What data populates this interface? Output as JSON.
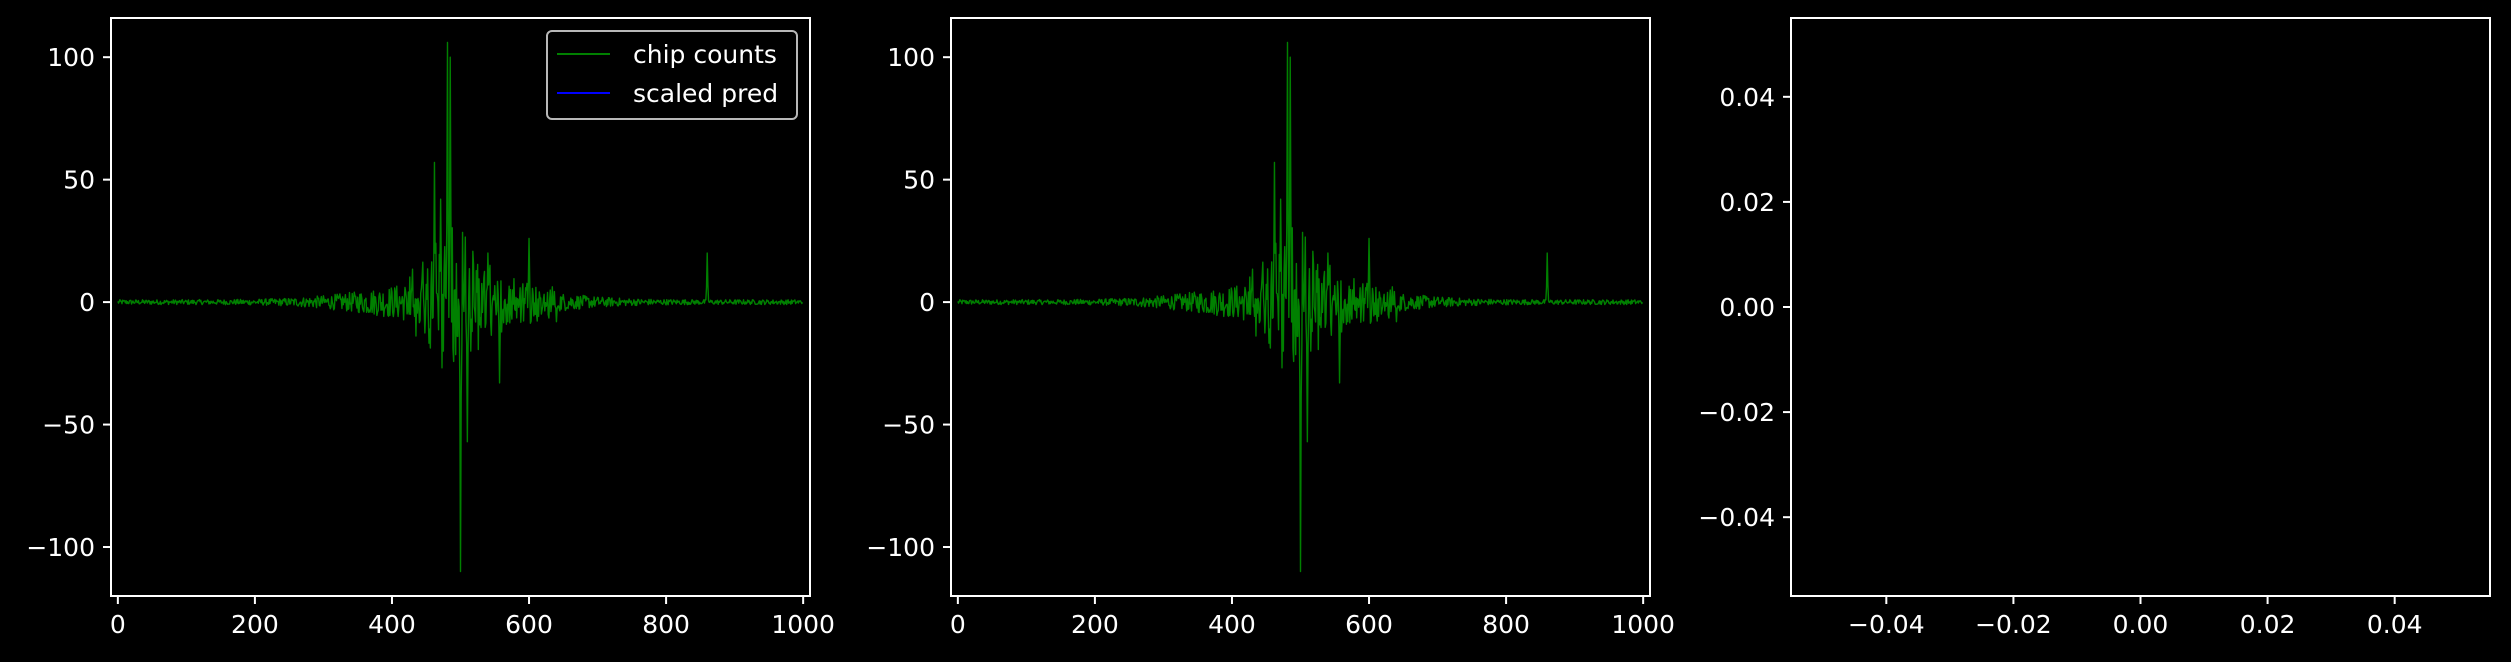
{
  "chart_data": [
    {
      "type": "line",
      "xlim": [
        -10,
        1010
      ],
      "ylim": [
        -120,
        116
      ],
      "xticks": [
        0,
        200,
        400,
        600,
        800,
        1000
      ],
      "xtick_labels": [
        "0",
        "200",
        "400",
        "600",
        "800",
        "1000"
      ],
      "yticks": [
        100,
        50,
        0,
        -50,
        -100
      ],
      "ytick_labels": [
        "100",
        "50",
        "0",
        "−50",
        "−100"
      ],
      "legend": {
        "placement": "upper right",
        "entries": [
          {
            "label": "chip counts",
            "color": "#008000"
          },
          {
            "label": "scaled pred",
            "color": "#0000ff"
          }
        ]
      },
      "series": [
        {
          "name": "chip counts",
          "color": "#008000",
          "n_points": 1000,
          "profile": "noise around 0, amplitude ~1 near edges rising to peaks near x=480-500",
          "landmarks": [
            {
              "x": 462,
              "y": 57
            },
            {
              "x": 471,
              "y": 42
            },
            {
              "x": 481,
              "y": 106
            },
            {
              "x": 485,
              "y": 100
            },
            {
              "x": 500,
              "y": -110
            },
            {
              "x": 510,
              "y": -57
            },
            {
              "x": 515,
              "y": -20
            },
            {
              "x": 540,
              "y": 20
            },
            {
              "x": 557,
              "y": -33
            },
            {
              "x": 600,
              "y": 26
            },
            {
              "x": 640,
              "y": -8
            },
            {
              "x": 860,
              "y": 20
            }
          ]
        },
        {
          "name": "scaled pred",
          "color": "#0000ff",
          "values": []
        }
      ]
    },
    {
      "type": "line",
      "xlim": [
        -10,
        1010
      ],
      "ylim": [
        -120,
        116
      ],
      "xticks": [
        0,
        200,
        400,
        600,
        800,
        1000
      ],
      "xtick_labels": [
        "0",
        "200",
        "400",
        "600",
        "800",
        "1000"
      ],
      "yticks": [
        100,
        50,
        0,
        -50,
        -100
      ],
      "ytick_labels": [
        "100",
        "50",
        "0",
        "−50",
        "−100"
      ],
      "series": [
        {
          "name": "chip counts",
          "color": "#008000",
          "same_as_panel": 1
        }
      ]
    },
    {
      "type": "line",
      "xlim": [
        -0.055,
        0.055
      ],
      "ylim": [
        -0.055,
        0.055
      ],
      "xticks": [
        -0.04,
        -0.02,
        0.0,
        0.02,
        0.04
      ],
      "xtick_labels": [
        "−0.04",
        "−0.02",
        "0.00",
        "0.02",
        "0.04"
      ],
      "yticks": [
        0.04,
        0.02,
        0.0,
        -0.02,
        -0.04
      ],
      "ytick_labels": [
        "0.04",
        "0.02",
        "0.00",
        "−0.02",
        "−0.04"
      ],
      "series": []
    }
  ]
}
